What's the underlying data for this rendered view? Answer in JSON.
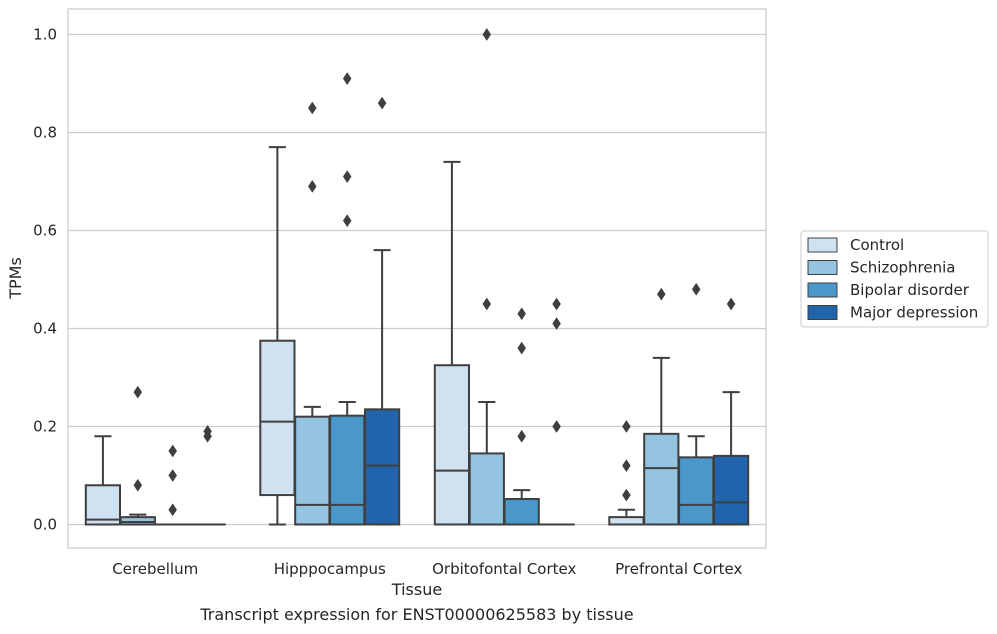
{
  "chart_data": {
    "type": "box",
    "caption": "Transcript expression for ENST00000625583 by tissue",
    "xlabel": "Tissue",
    "ylabel": "TPMs",
    "ylim": [
      -0.048,
      1.052
    ],
    "yticks": [
      "0.0",
      "0.2",
      "0.4",
      "0.6",
      "0.8",
      "1.0"
    ],
    "grid": true,
    "legend_position": "right",
    "categories": [
      "Cerebellum",
      "Hipppocampus",
      "Orbitofontal Cortex",
      "Prefrontal Cortex"
    ],
    "series": [
      {
        "name": "Control",
        "color": "#d0e1f2",
        "boxes": [
          {
            "q1": 0.0,
            "median": 0.01,
            "q3": 0.08,
            "whislo": 0.0,
            "whishi": 0.18,
            "fliers": []
          },
          {
            "q1": 0.06,
            "median": 0.21,
            "q3": 0.375,
            "whislo": 0.0,
            "whishi": 0.77,
            "fliers": []
          },
          {
            "q1": 0.0,
            "median": 0.11,
            "q3": 0.325,
            "whislo": 0.0,
            "whishi": 0.74,
            "fliers": []
          },
          {
            "q1": 0.0,
            "median": 0.0,
            "q3": 0.015,
            "whislo": 0.0,
            "whishi": 0.03,
            "fliers": [
              0.06,
              0.12,
              0.2
            ]
          }
        ]
      },
      {
        "name": "Schizophrenia",
        "color": "#94c4df",
        "boxes": [
          {
            "q1": 0.0,
            "median": 0.005,
            "q3": 0.015,
            "whislo": 0.0,
            "whishi": 0.02,
            "fliers": [
              0.08,
              0.27
            ]
          },
          {
            "q1": 0.0,
            "median": 0.04,
            "q3": 0.22,
            "whislo": 0.0,
            "whishi": 0.24,
            "fliers": [
              0.69,
              0.85
            ]
          },
          {
            "q1": 0.0,
            "median": 0.0,
            "q3": 0.145,
            "whislo": 0.0,
            "whishi": 0.25,
            "fliers": [
              0.45,
              1.0
            ]
          },
          {
            "q1": 0.0,
            "median": 0.115,
            "q3": 0.185,
            "whislo": 0.0,
            "whishi": 0.34,
            "fliers": [
              0.47
            ]
          }
        ]
      },
      {
        "name": "Bipolar disorder",
        "color": "#4a98c9",
        "boxes": [
          {
            "q1": 0.0,
            "median": 0.0,
            "q3": 0.0,
            "whislo": 0.0,
            "whishi": 0.0,
            "fliers": [
              0.03,
              0.1,
              0.15
            ]
          },
          {
            "q1": 0.0,
            "median": 0.04,
            "q3": 0.222,
            "whislo": 0.0,
            "whishi": 0.25,
            "fliers": [
              0.62,
              0.71,
              0.91
            ]
          },
          {
            "q1": 0.0,
            "median": 0.0,
            "q3": 0.052,
            "whislo": 0.0,
            "whishi": 0.07,
            "fliers": [
              0.18,
              0.36,
              0.43
            ]
          },
          {
            "q1": 0.0,
            "median": 0.04,
            "q3": 0.137,
            "whislo": 0.0,
            "whishi": 0.18,
            "fliers": [
              0.48
            ]
          }
        ]
      },
      {
        "name": "Major depression",
        "color": "#2164ab",
        "boxes": [
          {
            "q1": 0.0,
            "median": 0.0,
            "q3": 0.0,
            "whislo": 0.0,
            "whishi": 0.0,
            "fliers": [
              0.18,
              0.19
            ]
          },
          {
            "q1": 0.0,
            "median": 0.12,
            "q3": 0.235,
            "whislo": 0.0,
            "whishi": 0.56,
            "fliers": [
              0.86
            ]
          },
          {
            "q1": 0.0,
            "median": 0.0,
            "q3": 0.0,
            "whislo": 0.0,
            "whishi": 0.0,
            "fliers": [
              0.2,
              0.41,
              0.45
            ]
          },
          {
            "q1": 0.0,
            "median": 0.045,
            "q3": 0.14,
            "whislo": 0.0,
            "whishi": 0.27,
            "fliers": [
              0.45
            ]
          }
        ]
      }
    ]
  }
}
